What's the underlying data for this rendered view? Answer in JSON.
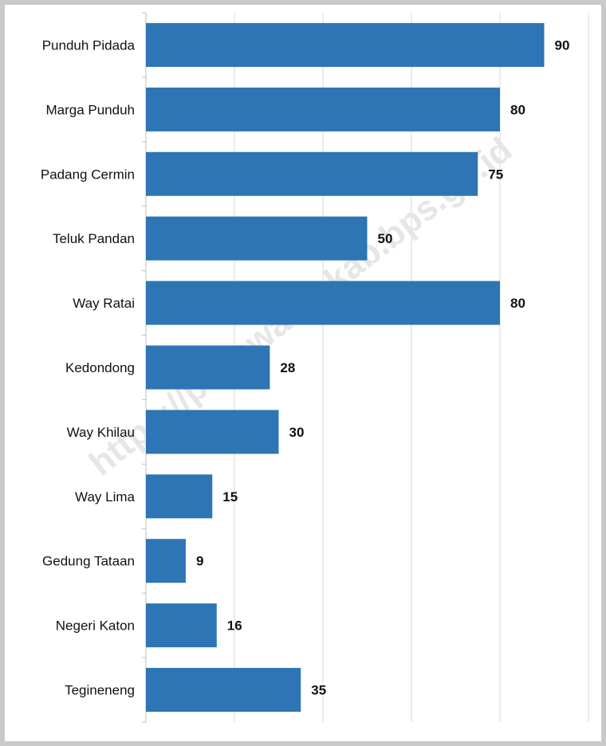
{
  "chart_data": {
    "type": "bar",
    "orientation": "horizontal",
    "categories": [
      "Punduh Pidada",
      "Marga Punduh",
      "Padang Cermin",
      "Teluk Pandan",
      "Way Ratai",
      "Kedondong",
      "Way Khilau",
      "Way Lima",
      "Gedung Tataan",
      "Negeri Katon",
      "Tegineneng"
    ],
    "values": [
      90,
      80,
      75,
      50,
      80,
      28,
      30,
      15,
      9,
      16,
      35
    ],
    "xlim": [
      0,
      100
    ],
    "grid": true,
    "data_labels": true,
    "bar_color": "#2e75b6"
  },
  "watermark": "https://pesawarankab.bps.go.id"
}
